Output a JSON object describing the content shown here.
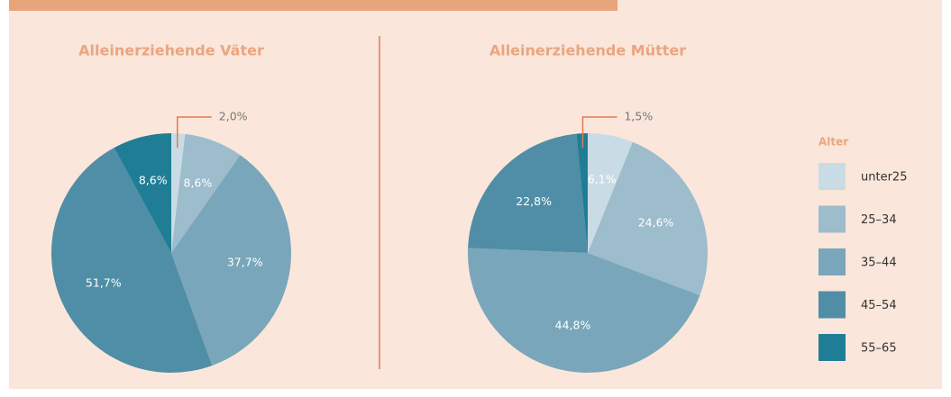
{
  "legend_title": "Alter",
  "chart_data": [
    {
      "type": "pie",
      "title": "Alleinerziehende Väter",
      "categories": [
        "unter25",
        "25–34",
        "35–44",
        "45–54",
        "55–65"
      ],
      "values": [
        2.0,
        8.6,
        37.7,
        51.7,
        8.6
      ],
      "value_labels": [
        "2,0%",
        "8,6%",
        "37,7%",
        "51,7%",
        "8,6%"
      ],
      "colors": [
        "#c9dce5",
        "#9dbccc",
        "#79a6ba",
        "#4f8ea6",
        "#1f7e96"
      ]
    },
    {
      "type": "pie",
      "title": "Alleinerziehende Mütter",
      "categories": [
        "unter25",
        "25–34",
        "35–44",
        "45–54",
        "55–65"
      ],
      "values": [
        6.1,
        24.6,
        44.8,
        22.8,
        1.5
      ],
      "value_labels": [
        "6,1%",
        "24,6%",
        "44,8%",
        "22,8%",
        "1,5%"
      ],
      "colors": [
        "#c9dce5",
        "#9dbccc",
        "#79a6ba",
        "#4f8ea6",
        "#1f7e96"
      ]
    }
  ]
}
